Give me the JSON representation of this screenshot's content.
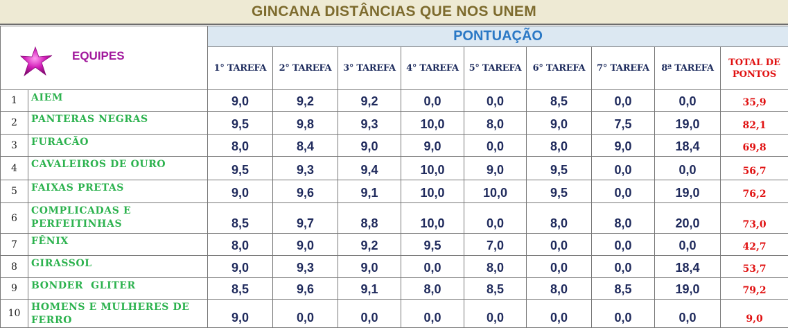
{
  "title": "GINCANA DISTÂNCIAS QUE NOS UNEM",
  "header": {
    "equipes_label": "EQUIPES",
    "star_icon": "magenta-star-icon",
    "pontuacao_label": "PONTUAÇÃO",
    "tasks": [
      "1° TAREFA",
      "2° TAREFA",
      "3° TAREFA",
      "4° TAREFA",
      "5° TAREFA",
      "6° TAREFA",
      "7° TAREFA",
      "8ª TAREFA"
    ],
    "total_line1": "TOTAL DE",
    "total_line2": "PONTOS"
  },
  "colors": {
    "title_text": "#7d6b2e",
    "title_bg": "#eeead4",
    "equipes_text": "#a1179c",
    "pontuacao_text": "#2a78c5",
    "pontuacao_bg": "#dce8f2",
    "team_text": "#2cb24e",
    "score_text": "#1f2a5c",
    "total_text": "#e01010"
  },
  "rows": [
    {
      "num": "1",
      "team": "AIEM",
      "scores": [
        "9,0",
        "9,2",
        "9,2",
        "0,0",
        "0,0",
        "8,5",
        "0,0",
        "0,0"
      ],
      "total": "35,9"
    },
    {
      "num": "2",
      "team": "PANTERAS NEGRAS",
      "scores": [
        "9,5",
        "9,8",
        "9,3",
        "10,0",
        "8,0",
        "9,0",
        "7,5",
        "19,0"
      ],
      "total": "82,1"
    },
    {
      "num": "3",
      "team": "FURACÃO",
      "scores": [
        "8,0",
        "8,4",
        "9,0",
        "9,0",
        "0,0",
        "8,0",
        "9,0",
        "18,4"
      ],
      "total": "69,8"
    },
    {
      "num": "4",
      "team": "CAVALEIROS DE OURO",
      "scores": [
        "9,5",
        "9,3",
        "9,4",
        "10,0",
        "9,0",
        "9,5",
        "0,0",
        "0,0"
      ],
      "total": "56,7"
    },
    {
      "num": "5",
      "team": "FAIXAS PRETAS",
      "scores": [
        "9,0",
        "9,6",
        "9,1",
        "10,0",
        "10,0",
        "9,5",
        "0,0",
        "19,0"
      ],
      "total": "76,2"
    },
    {
      "num": "6",
      "team": "COMPLICADAS E PERFEITINHAS",
      "scores": [
        "8,5",
        "9,7",
        "8,8",
        "10,0",
        "0,0",
        "8,0",
        "8,0",
        "20,0"
      ],
      "total": "73,0"
    },
    {
      "num": "7",
      "team": "FÊNIX",
      "scores": [
        "8,0",
        "9,0",
        "9,2",
        "9,5",
        "7,0",
        "0,0",
        "0,0",
        "0,0"
      ],
      "total": "42,7"
    },
    {
      "num": "8",
      "team": "GIRASSOL",
      "scores": [
        "9,0",
        "9,3",
        "9,0",
        "0,0",
        "8,0",
        "0,0",
        "0,0",
        "18,4"
      ],
      "total": "53,7"
    },
    {
      "num": "9",
      "team": "BONDER  GLITER",
      "scores": [
        "8,5",
        "9,6",
        "9,1",
        "8,0",
        "8,5",
        "8,0",
        "8,5",
        "19,0"
      ],
      "total": "79,2"
    },
    {
      "num": "10",
      "team": "HOMENS E MULHERES DE FERRO",
      "scores": [
        "9,0",
        "0,0",
        "0,0",
        "0,0",
        "0,0",
        "0,0",
        "0,0",
        "0,0"
      ],
      "total": "9,0"
    }
  ]
}
